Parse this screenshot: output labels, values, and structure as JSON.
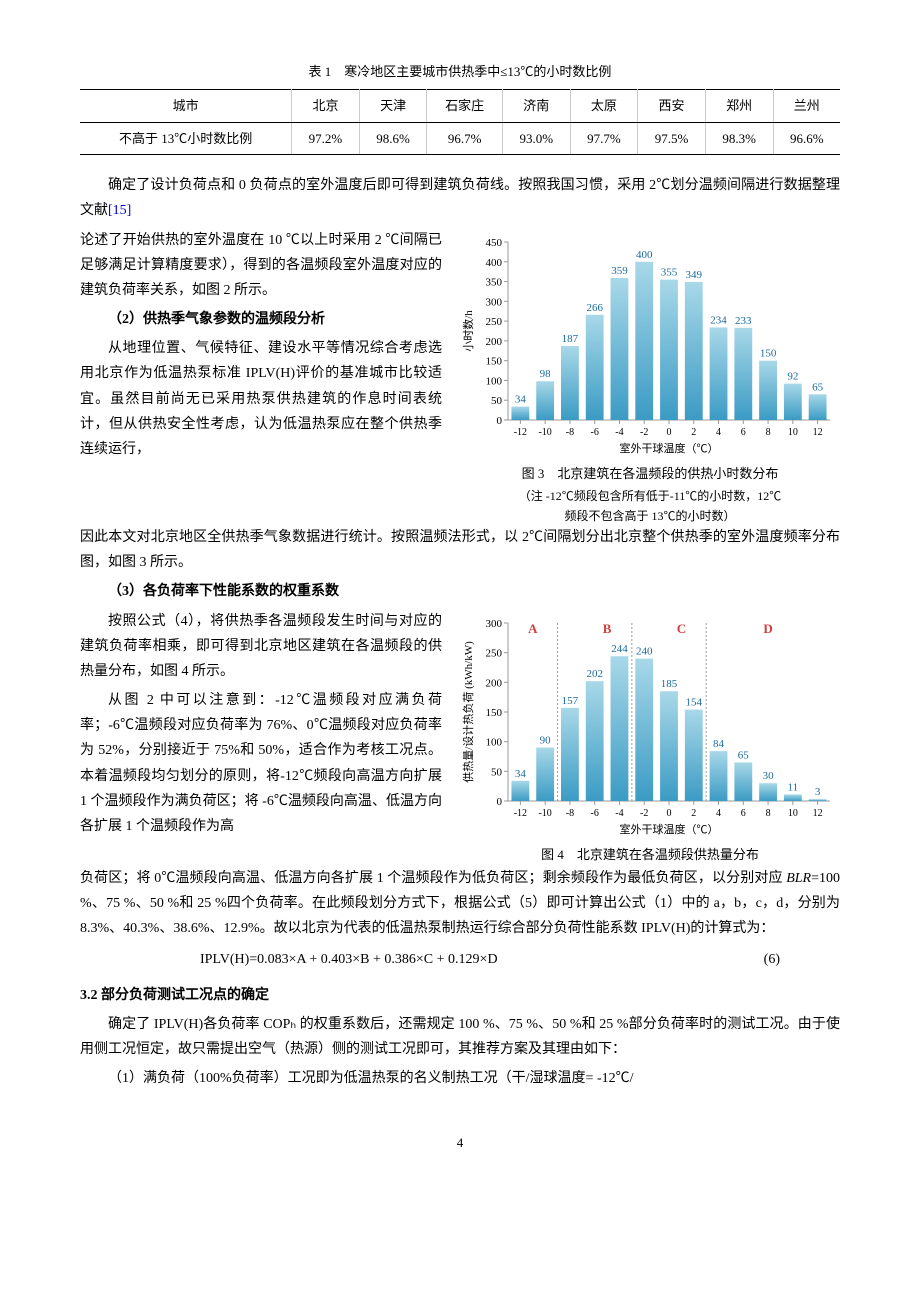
{
  "table1": {
    "caption": "表 1　寒冷地区主要城市供热季中≤13℃的小时数比例",
    "header": [
      "城市",
      "北京",
      "天津",
      "石家庄",
      "济南",
      "太原",
      "西安",
      "郑州",
      "兰州"
    ],
    "row_label": "不高于 13℃小时数比例",
    "values": [
      "97.2%",
      "98.6%",
      "96.7%",
      "93.0%",
      "97.7%",
      "97.5%",
      "98.3%",
      "96.6%"
    ]
  },
  "para1": "确定了设计负荷点和 0 负荷点的室外温度后即可得到建筑负荷线。按照我国习惯，采用 2℃划分温频间隔进行数据整理文献",
  "ref15": "[15]",
  "para1b": "论述了开始供热的室外温度在 10 ℃以上时采用 2 ℃间隔已足够满足计算精度要求），得到的各温频段室外温度对应的建筑负荷率关系，如图 2 所示。",
  "sub2": "（2）供热季气象参数的温频段分析",
  "para2": "从地理位置、气候特征、建设水平等情况综合考虑选用北京作为低温热泵标准 IPLV(H)评价的基准城市比较适宜。虽然目前尚无已采用热泵供热建筑的作息时间表统计，但从供热安全性考虑，认为低温热泵应在整个供热季连续运行，",
  "para2b": "因此本文对北京地区全供热季气象数据进行统计。按照温频法形式，以 2℃间隔划分出北京整个供热季的室外温度频率分布图，如图 3 所示。",
  "sub3": "（3）各负荷率下性能系数的权重系数",
  "para3": "按照公式（4），将供热季各温频段发生时间与对应的建筑负荷率相乘，即可得到北京地区建筑在各温频段的供热量分布，如图 4 所示。",
  "para4": "从图 2 中可以注意到：-12℃温频段对应满负荷率；-6℃温频段对应负荷率为 76%、0℃温频段对应负荷率为 52%，分别接近于 75%和 50%，适合作为考核工况点。本着温频段均匀划分的原则，将-12℃频段向高温方向扩展 1 个温频段作为满负荷区；将 -6℃温频段向高温、低温方向各扩展 1 个温频段作为高",
  "para4b": "负荷区；将 0℃温频段向高温、低温方向各扩展 1 个温频段作为低负荷区；剩余频段作为最低负荷区，以分别对应 ",
  "blr_i": "BLR",
  "para4c": "=100 %、75 %、50 %和 25 %四个负荷率。在此频段划分方式下，根据公式（5）即可计算出公式（1）中的 a，b，c，d，分别为 8.3%、40.3%、38.6%、12.9%。故以北京为代表的低温热泵制热运行综合部分负荷性能系数 IPLV(H)的计算式为：",
  "formula6": "IPLV(H)=0.083×A + 0.403×B + 0.386×C + 0.129×D",
  "formula6_num": "(6)",
  "section32": "3.2 部分负荷测试工况点的确定",
  "para5": "确定了 IPLV(H)各负荷率 COPₕ 的权重系数后，还需规定 100 %、75 %、50 %和 25 %部分负荷率时的测试工况。由于使用侧工况恒定，故只需提出空气（热源）侧的测试工况即可，其推荐方案及其理由如下：",
  "para6": "（1）满负荷（100%负荷率）工况即为低温热泵的名义制热工况（干/湿球温度= -12℃/",
  "chart3": {
    "caption": "图 3　北京建筑在各温频段的供热小时数分布",
    "note1": "（注 -12℃频段包含所有低于-11℃的小时数，12℃",
    "note2": "频段不包含高于 13℃的小时数）",
    "xlabel": "室外干球温度（℃）",
    "ylabel": "小时数/h",
    "categories": [
      "-12",
      "-10",
      "-8",
      "-6",
      "-4",
      "-2",
      "0",
      "2",
      "4",
      "6",
      "8",
      "10",
      "12"
    ],
    "values": [
      34,
      98,
      187,
      266,
      359,
      400,
      355,
      349,
      234,
      233,
      150,
      92,
      65
    ],
    "ymax": 450,
    "ystep": 50,
    "bar_gradient_top": "#a8d8e8",
    "bar_gradient_bottom": "#3b9bc4",
    "label_color": "#1a6ba0",
    "axis_color": "#999",
    "tick_color": "#999",
    "text_color": "#000"
  },
  "chart4": {
    "caption": "图 4　北京建筑在各温频段供热量分布",
    "xlabel": "室外干球温度（℃）",
    "ylabel": "供热量/设计热负荷 (kWh/kW)",
    "categories": [
      "-12",
      "-10",
      "-8",
      "-6",
      "-4",
      "-2",
      "0",
      "2",
      "4",
      "6",
      "8",
      "10",
      "12"
    ],
    "values": [
      34,
      90,
      157,
      202,
      244,
      240,
      185,
      154,
      84,
      65,
      30,
      11,
      3
    ],
    "ymax": 300,
    "ystep": 50,
    "bar_gradient_top": "#a8d8e8",
    "bar_gradient_bottom": "#3b9bc4",
    "label_color": "#1a6ba0",
    "axis_color": "#999",
    "tick_color": "#999",
    "region_labels": [
      {
        "text": "A",
        "x_idx": 0.5,
        "color": "#d04040"
      },
      {
        "text": "B",
        "x_idx": 3.5,
        "color": "#d04040"
      },
      {
        "text": "C",
        "x_idx": 6.5,
        "color": "#d04040"
      },
      {
        "text": "D",
        "x_idx": 10,
        "color": "#d04040"
      }
    ],
    "region_dividers": [
      1.5,
      4.5,
      7.5
    ]
  },
  "pagenum": "4"
}
